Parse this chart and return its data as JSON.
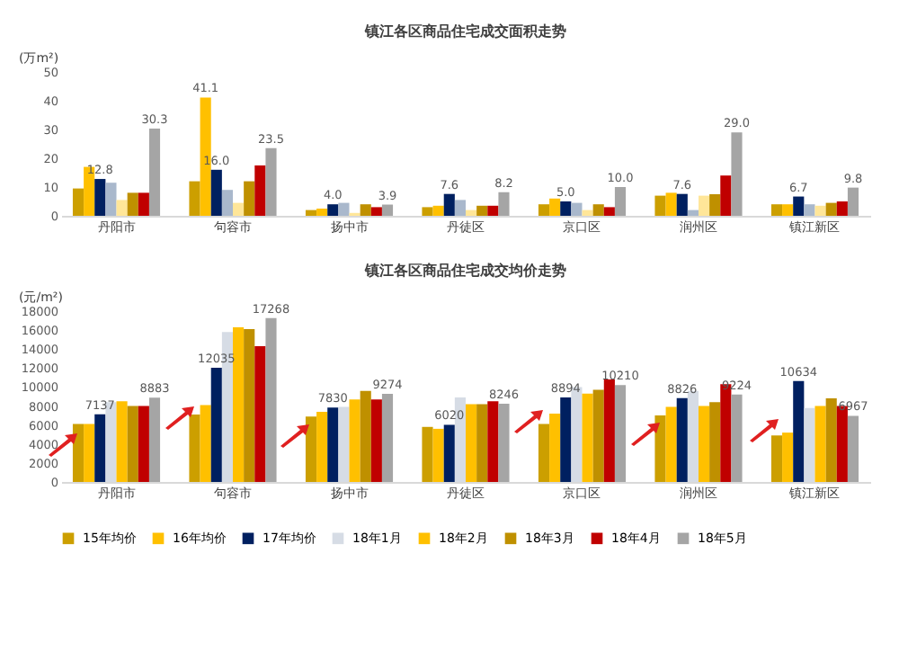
{
  "chart_data": [
    {
      "type": "bar",
      "title": "镇江各区商品住宅成交面积走势",
      "ylabel": "(万m²)",
      "categories": [
        "丹阳市",
        "句容市",
        "扬中市",
        "丹徒区",
        "京口区",
        "润州区",
        "镇江新区"
      ],
      "ylim": [
        0,
        50
      ],
      "yticks": [
        0,
        10,
        20,
        30,
        40,
        50
      ],
      "series": [
        {
          "color": "#cc9f00",
          "values": [
            9.5,
            12,
            2,
            3,
            4,
            7,
            4
          ]
        },
        {
          "color": "#ffc000",
          "values": [
            17,
            41.1,
            2.5,
            3.5,
            6,
            8,
            4
          ],
          "value_labels": [
            null,
            "41.1",
            null,
            null,
            null,
            null,
            null
          ]
        },
        {
          "color": "#002060",
          "values": [
            12.8,
            16.0,
            4.0,
            7.6,
            5.0,
            7.6,
            6.7
          ],
          "value_labels": [
            "12.8",
            "16.0",
            "4.0",
            "7.6",
            "5.0",
            "7.6",
            "6.7"
          ]
        },
        {
          "color": "#a9b8cc",
          "values": [
            11.5,
            9,
            4.5,
            5.5,
            4.5,
            2,
            4
          ]
        },
        {
          "color": "#ffe699",
          "values": [
            5.5,
            4.5,
            1,
            2,
            2,
            7,
            3.5
          ]
        },
        {
          "color": "#bf9000",
          "values": [
            8,
            12,
            4,
            3.5,
            4,
            7.5,
            4.5
          ]
        },
        {
          "color": "#c00000",
          "values": [
            8,
            17.5,
            3,
            3.5,
            3,
            14,
            5
          ]
        },
        {
          "color": "#a5a5a5",
          "values": [
            30.3,
            23.5,
            3.9,
            8.2,
            10.0,
            29.0,
            9.8
          ],
          "value_labels": [
            "30.3",
            "23.5",
            "3.9",
            "8.2",
            "10.0",
            "29.0",
            "9.8"
          ]
        }
      ]
    },
    {
      "type": "bar",
      "title": "镇江各区商品住宅成交均价走势",
      "ylabel": "(元/m²)",
      "categories": [
        "丹阳市",
        "句容市",
        "扬中市",
        "丹徒区",
        "京口区",
        "润州区",
        "镇江新区"
      ],
      "ylim": [
        0,
        18000
      ],
      "yticks": [
        0,
        2000,
        4000,
        6000,
        8000,
        10000,
        12000,
        14000,
        16000,
        18000
      ],
      "legend": "bottom",
      "series": [
        {
          "name": "15年均价",
          "color": "#cc9f00",
          "values": [
            6100,
            7100,
            6900,
            5800,
            6100,
            7000,
            4900
          ]
        },
        {
          "name": "16年均价",
          "color": "#ffc000",
          "values": [
            6100,
            8100,
            7400,
            5600,
            7200,
            7900,
            5200
          ]
        },
        {
          "name": "17年均价",
          "color": "#002060",
          "values": [
            7137,
            12035,
            7830,
            6020,
            8894,
            8826,
            10634
          ],
          "value_labels": [
            "7137",
            "12035",
            "7830",
            "6020",
            "8894",
            "8826",
            "10634"
          ]
        },
        {
          "name": "18年1月",
          "color": "#d6dce5",
          "values": [
            8400,
            15800,
            7900,
            8900,
            10000,
            9600,
            7800
          ]
        },
        {
          "name": "18年2月",
          "color": "#ffc000",
          "values": [
            8500,
            16300,
            8700,
            8200,
            9300,
            8000,
            8000
          ]
        },
        {
          "name": "18年3月",
          "color": "#bf9000",
          "values": [
            8000,
            16100,
            9600,
            8200,
            9700,
            8400,
            8800
          ]
        },
        {
          "name": "18年4月",
          "color": "#c00000",
          "values": [
            8000,
            14300,
            8700,
            8500,
            10800,
            10300,
            8000
          ]
        },
        {
          "name": "18年5月",
          "color": "#a5a5a5",
          "values": [
            8883,
            17268,
            9274,
            8246,
            10210,
            9224,
            6967
          ],
          "value_labels": [
            "8883",
            "17268",
            "9274",
            "8246",
            "10210",
            "9224",
            "6967"
          ]
        }
      ]
    }
  ]
}
